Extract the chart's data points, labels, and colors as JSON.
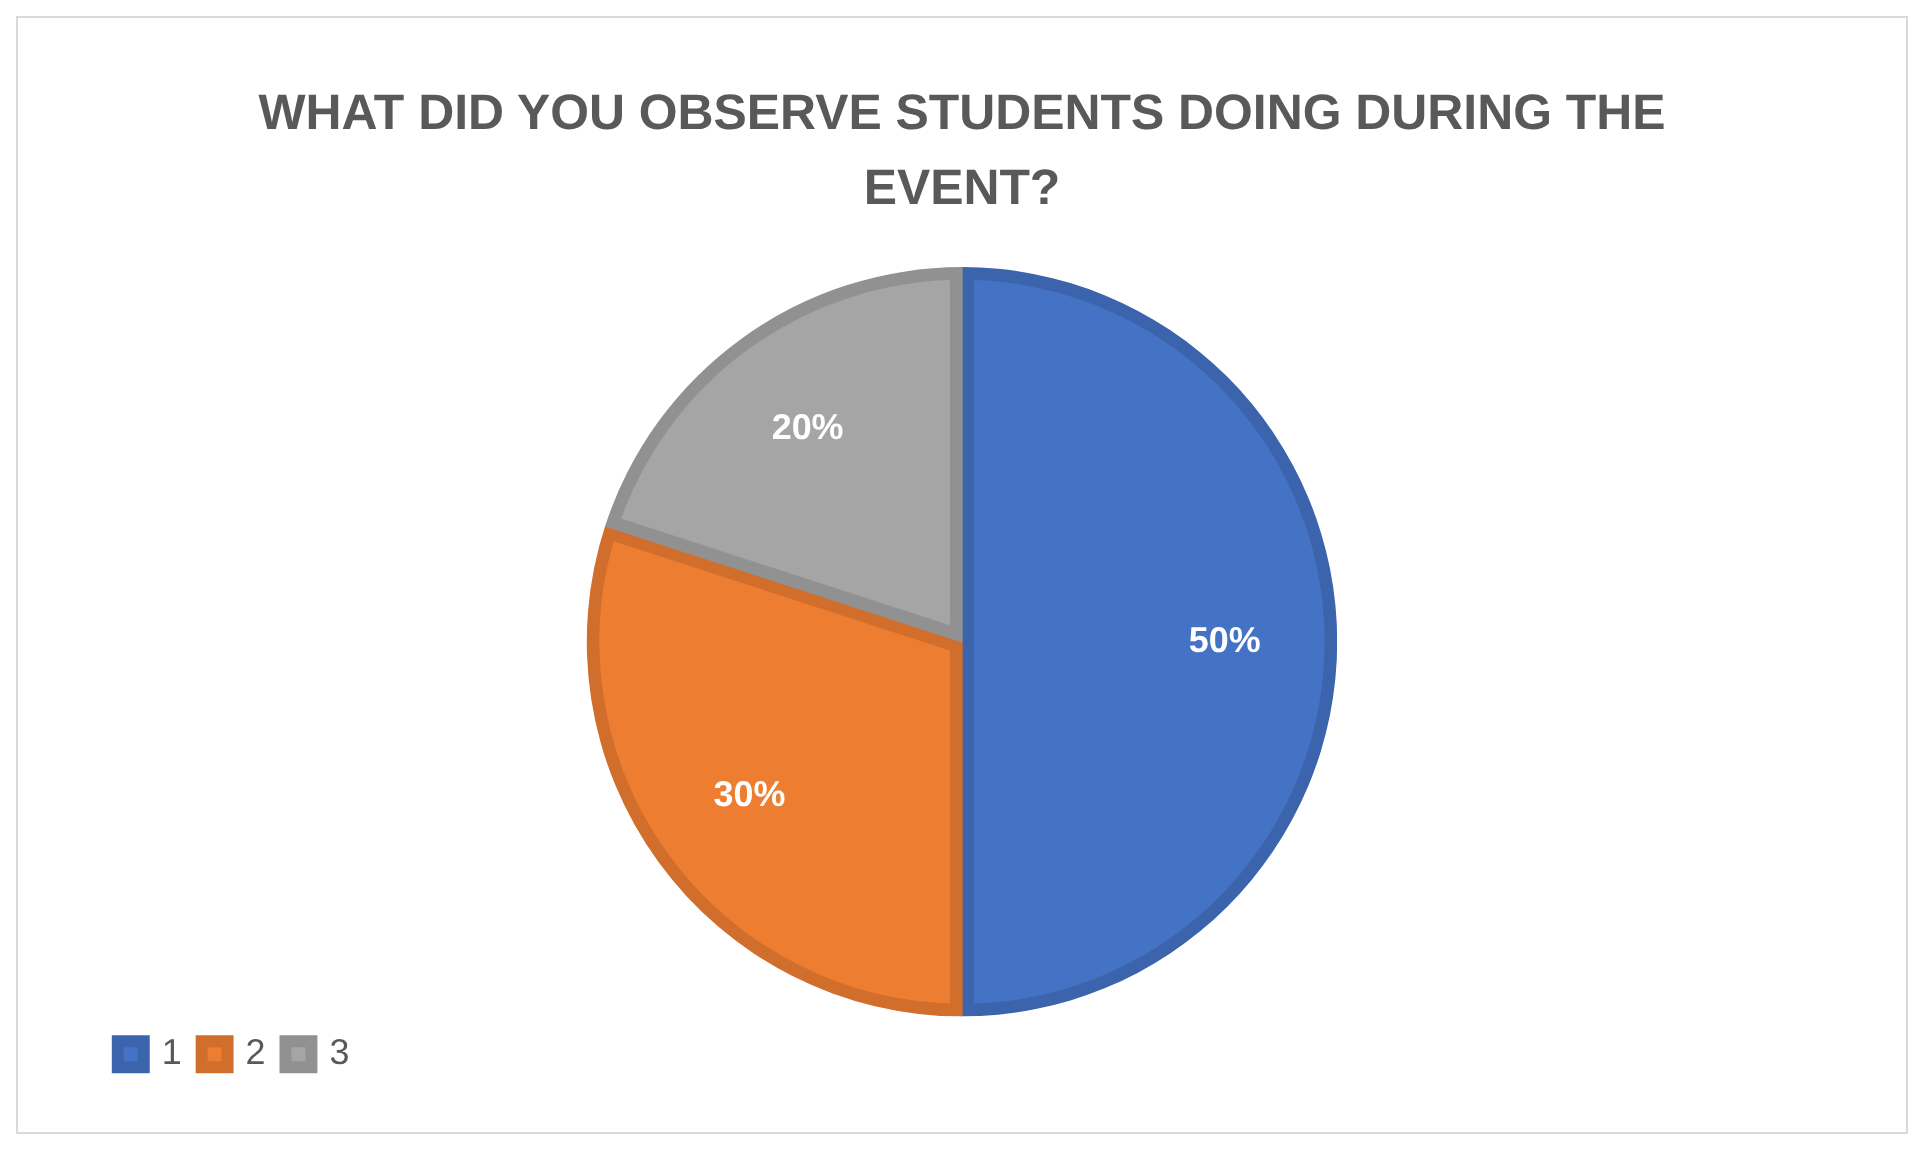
{
  "chart_data": {
    "type": "pie",
    "title": "WHAT DID YOU OBSERVE STUDENTS DOING DURING THE EVENT?",
    "categories": [
      "1",
      "2",
      "3"
    ],
    "values": [
      50,
      30,
      20
    ],
    "colors": [
      "#4472c4",
      "#ed7d31",
      "#a5a5a5"
    ],
    "value_labels": [
      "50%",
      "30%",
      "20%"
    ],
    "legend": "bottom left"
  }
}
